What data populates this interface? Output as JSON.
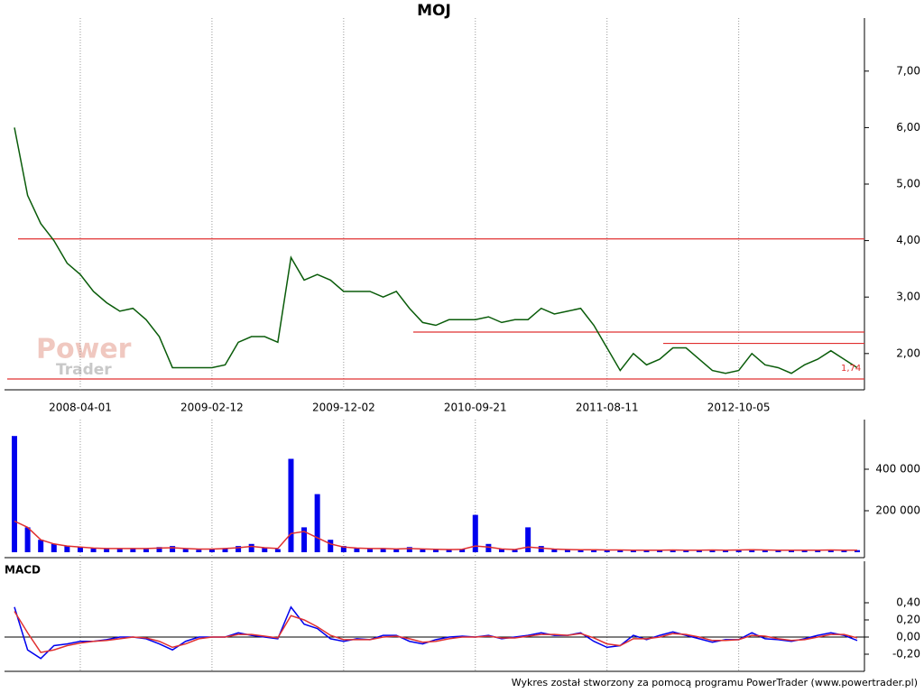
{
  "logo": [
    "Power",
    "Trader"
  ],
  "footer": "Wykres został stworzony za pomocą programu PowerTrader (www.powertrader.pl)",
  "chart_data": [
    {
      "type": "line",
      "title": "MOJ",
      "categories": [
        null,
        null,
        null,
        null,
        null,
        "2008-04-01",
        null,
        null,
        null,
        null,
        null,
        null,
        null,
        null,
        null,
        "2009-02-12",
        null,
        null,
        null,
        null,
        null,
        null,
        null,
        null,
        null,
        "2009-12-02",
        null,
        null,
        null,
        null,
        null,
        null,
        null,
        null,
        null,
        "2010-09-21",
        null,
        null,
        null,
        null,
        null,
        null,
        null,
        null,
        null,
        "2011-08-11",
        null,
        null,
        null,
        null,
        null,
        null,
        null,
        null,
        null,
        "2012-10-05",
        null,
        null,
        null,
        null,
        null,
        null,
        null,
        null,
        null
      ],
      "series": [
        {
          "color": "#0a5c0a",
          "values": [
            6.0,
            4.8,
            4.3,
            4.0,
            3.6,
            3.4,
            3.1,
            2.9,
            2.75,
            2.8,
            2.6,
            2.3,
            1.75,
            1.75,
            1.75,
            1.75,
            1.8,
            2.2,
            2.3,
            2.3,
            2.2,
            3.7,
            3.3,
            3.4,
            3.3,
            3.1,
            3.1,
            3.1,
            3.0,
            3.1,
            2.8,
            2.55,
            2.5,
            2.6,
            2.6,
            2.6,
            2.65,
            2.55,
            2.6,
            2.6,
            2.8,
            2.7,
            2.75,
            2.8,
            2.5,
            2.1,
            1.7,
            2.0,
            1.8,
            1.9,
            2.1,
            2.1,
            1.9,
            1.7,
            1.65,
            1.7,
            2.0,
            1.8,
            1.75,
            1.65,
            1.8,
            1.9,
            2.05,
            1.9,
            1.75
          ]
        }
      ],
      "levels": [
        {
          "value": 4.03,
          "color": "#e03030"
        },
        {
          "value": 2.38,
          "color": "#e03030"
        },
        {
          "value": 2.18,
          "color": "#e03030"
        },
        {
          "value": 1.55,
          "color": "#e03030"
        }
      ],
      "last_label": {
        "value": 1.74,
        "label": "1,74"
      },
      "ylim": [
        1.39,
        7.54
      ],
      "yticks": [
        {
          "value": 2,
          "label": "2,00"
        },
        {
          "value": 3,
          "label": "3,00"
        },
        {
          "value": 4,
          "label": "4,00"
        },
        {
          "value": 5,
          "label": "5,00"
        },
        {
          "value": 6,
          "label": "6,00"
        },
        {
          "value": 7,
          "label": "7,00"
        }
      ],
      "grid": true
    },
    {
      "type": "bar",
      "series": [
        {
          "type": "bar",
          "color": "#0000ee",
          "values": [
            560000,
            120000,
            60000,
            40000,
            30000,
            25000,
            20000,
            20000,
            15000,
            20000,
            15000,
            25000,
            30000,
            15000,
            12000,
            15000,
            20000,
            30000,
            40000,
            20000,
            15000,
            450000,
            120000,
            280000,
            60000,
            30000,
            20000,
            15000,
            20000,
            15000,
            25000,
            15000,
            12000,
            12000,
            15000,
            180000,
            40000,
            15000,
            12000,
            120000,
            30000,
            15000,
            12000,
            12000,
            15000,
            10000,
            12000,
            10000,
            10000,
            10000,
            12000,
            10000,
            10000,
            12000,
            10000,
            12000,
            15000,
            10000,
            10000,
            10000,
            10000,
            10000,
            12000,
            10000,
            10000
          ]
        },
        {
          "type": "line",
          "color": "#e03030",
          "values": [
            150000,
            120000,
            60000,
            40000,
            30000,
            25000,
            20000,
            18000,
            18000,
            18000,
            18000,
            20000,
            22000,
            18000,
            15000,
            15000,
            18000,
            22000,
            28000,
            22000,
            18000,
            90000,
            100000,
            70000,
            40000,
            25000,
            20000,
            18000,
            18000,
            16000,
            18000,
            16000,
            14000,
            13000,
            14000,
            30000,
            25000,
            16000,
            13000,
            25000,
            20000,
            15000,
            13000,
            12000,
            12000,
            11000,
            11000,
            10000,
            10000,
            10000,
            11000,
            10000,
            10000,
            11000,
            10000,
            11000,
            12000,
            11000,
            10000,
            10000,
            10000,
            10000,
            11000,
            10000,
            10000
          ]
        }
      ],
      "ylim": [
        0,
        582600
      ],
      "yticks": [
        {
          "value": 200000,
          "label": "200 000"
        },
        {
          "value": 400000,
          "label": "400 000"
        }
      ],
      "grid": true
    },
    {
      "type": "line",
      "title": "MACD",
      "series": [
        {
          "color": "#0000ee",
          "values": [
            0.35,
            -0.15,
            -0.25,
            -0.1,
            -0.08,
            -0.05,
            -0.05,
            -0.03,
            0,
            0,
            -0.02,
            -0.08,
            -0.15,
            -0.05,
            0,
            0,
            0,
            0.05,
            0.02,
            0,
            -0.02,
            0.35,
            0.15,
            0.1,
            -0.02,
            -0.05,
            -0.02,
            -0.03,
            0.02,
            0.02,
            -0.05,
            -0.08,
            -0.03,
            0,
            0.01,
            0,
            0.02,
            -0.02,
            0,
            0.02,
            0.05,
            0.02,
            0.02,
            0.05,
            -0.05,
            -0.12,
            -0.1,
            0.02,
            -0.03,
            0.02,
            0.06,
            0.02,
            -0.02,
            -0.06,
            -0.03,
            -0.03,
            0.05,
            -0.02,
            -0.03,
            -0.05,
            -0.02,
            0.02,
            0.05,
            0.02,
            -0.04
          ]
        },
        {
          "color": "#e03030",
          "values": [
            0.3,
            0.05,
            -0.18,
            -0.15,
            -0.1,
            -0.07,
            -0.05,
            -0.04,
            -0.02,
            0,
            -0.01,
            -0.05,
            -0.12,
            -0.08,
            -0.02,
            0,
            0,
            0.03,
            0.03,
            0.01,
            -0.01,
            0.25,
            0.2,
            0.12,
            0.02,
            -0.03,
            -0.03,
            -0.03,
            0,
            0.01,
            -0.02,
            -0.06,
            -0.05,
            -0.02,
            0,
            0,
            0.01,
            -0.01,
            -0.01,
            0.01,
            0.03,
            0.03,
            0.02,
            0.04,
            -0.01,
            -0.08,
            -0.1,
            -0.02,
            -0.02,
            0,
            0.04,
            0.03,
            0,
            -0.04,
            -0.04,
            -0.03,
            0.02,
            0.01,
            -0.02,
            -0.04,
            -0.03,
            0,
            0.03,
            0.03,
            -0.01
          ]
        }
      ],
      "ylim": [
        -0.379,
        0.642
      ],
      "yticks": [
        {
          "value": -0.2,
          "label": "-0,20"
        },
        {
          "value": 0,
          "label": "0,00"
        },
        {
          "value": 0.2,
          "label": "0,20"
        },
        {
          "value": 0.4,
          "label": "0,40"
        }
      ],
      "grid": true
    }
  ]
}
